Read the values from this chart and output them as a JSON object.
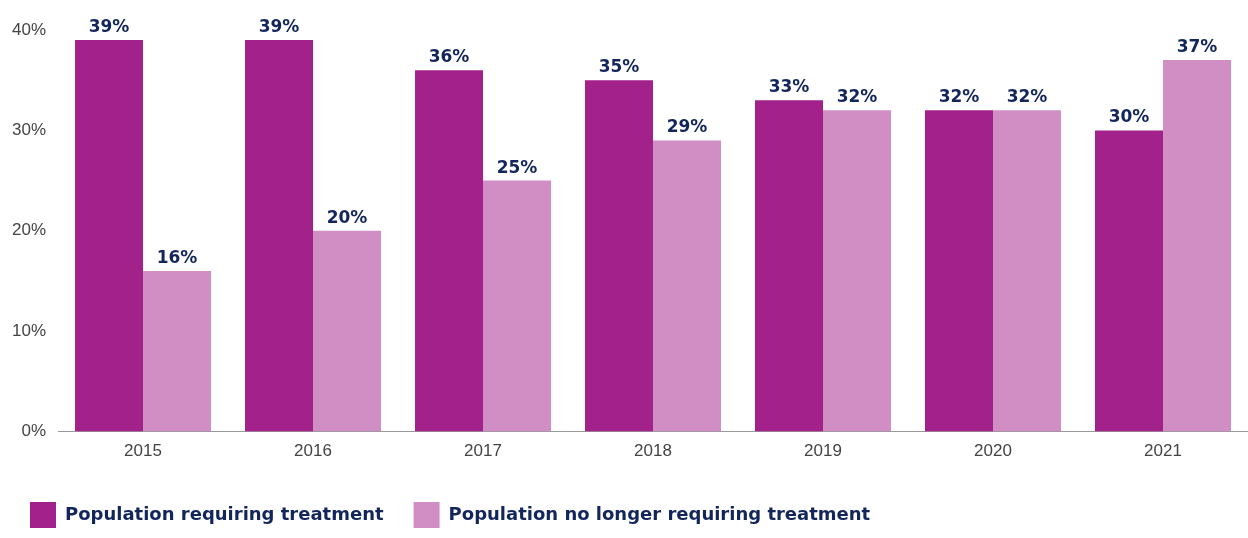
{
  "chart_data": {
    "type": "bar",
    "categories": [
      "2015",
      "2016",
      "2017",
      "2018",
      "2019",
      "2020",
      "2021"
    ],
    "series": [
      {
        "name": "Population requiring treatment",
        "color": "#a3218a",
        "values": [
          39,
          39,
          36,
          35,
          33,
          32,
          30
        ],
        "value_labels": [
          "39%",
          "39%",
          "36%",
          "35%",
          "33%",
          "32%",
          "30%"
        ]
      },
      {
        "name": "Population no longer requiring treatment",
        "color": "#d08ec4",
        "values": [
          16,
          20,
          25,
          29,
          32,
          32,
          37
        ],
        "value_labels": [
          "16%",
          "20%",
          "25%",
          "29%",
          "32%",
          "32%",
          "37%"
        ]
      }
    ],
    "ylim": [
      0,
      40
    ],
    "yticks": [
      {
        "value": 0,
        "label": "0%"
      },
      {
        "value": 10,
        "label": "10%"
      },
      {
        "value": 20,
        "label": "20%"
      },
      {
        "value": 30,
        "label": "30%"
      },
      {
        "value": 40,
        "label": "40%"
      }
    ],
    "grid": false,
    "legend": "bottom left"
  }
}
